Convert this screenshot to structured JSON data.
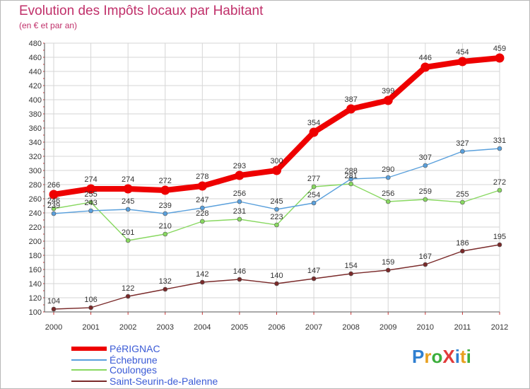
{
  "title": "Evolution des Impôts locaux par Habitant",
  "subtitle": "(en € et par an)",
  "logo": {
    "text": "ProXiti",
    "letters": [
      "P",
      "r",
      "o",
      "X",
      "i",
      "t",
      "i"
    ],
    "letter_colors": [
      "#2f7fd0",
      "#e8a020",
      "#3cae3c",
      "#e23b3b",
      "#2f7fd0",
      "#e8a020",
      "#3cae3c"
    ]
  },
  "chart_data": {
    "type": "line",
    "title": "Evolution des Impôts locaux par Habitant",
    "subtitle": "(en € et par an)",
    "xlabel": "",
    "ylabel": "",
    "x": [
      "2000",
      "2001",
      "2002",
      "2003",
      "2004",
      "2005",
      "2006",
      "2007",
      "2008",
      "2009",
      "2010",
      "2011",
      "2012"
    ],
    "ylim": [
      100,
      480
    ],
    "yticks": [
      100,
      120,
      140,
      160,
      180,
      200,
      220,
      240,
      260,
      280,
      300,
      320,
      340,
      360,
      380,
      400,
      420,
      440,
      460,
      480
    ],
    "grid": true,
    "legend_position": "bottom-left",
    "series": [
      {
        "name": "PéRIGNAC",
        "color": "#ee0000",
        "values": [
          266,
          274,
          274,
          272,
          278,
          293,
          300,
          354,
          387,
          399,
          446,
          454,
          459
        ]
      },
      {
        "name": "Échebrune",
        "color": "#5aa0dc",
        "values": [
          239,
          243,
          245,
          239,
          247,
          256,
          245,
          254,
          288,
          290,
          307,
          327,
          331
        ]
      },
      {
        "name": "Coulonges",
        "color": "#88d860",
        "values": [
          246,
          255,
          201,
          210,
          228,
          231,
          223,
          277,
          281,
          256,
          259,
          255,
          272
        ]
      },
      {
        "name": "Saint-Seurin-de-Palenne",
        "color": "#7a2a2a",
        "values": [
          104,
          106,
          122,
          132,
          142,
          146,
          140,
          147,
          154,
          159,
          167,
          186,
          195
        ]
      }
    ]
  }
}
